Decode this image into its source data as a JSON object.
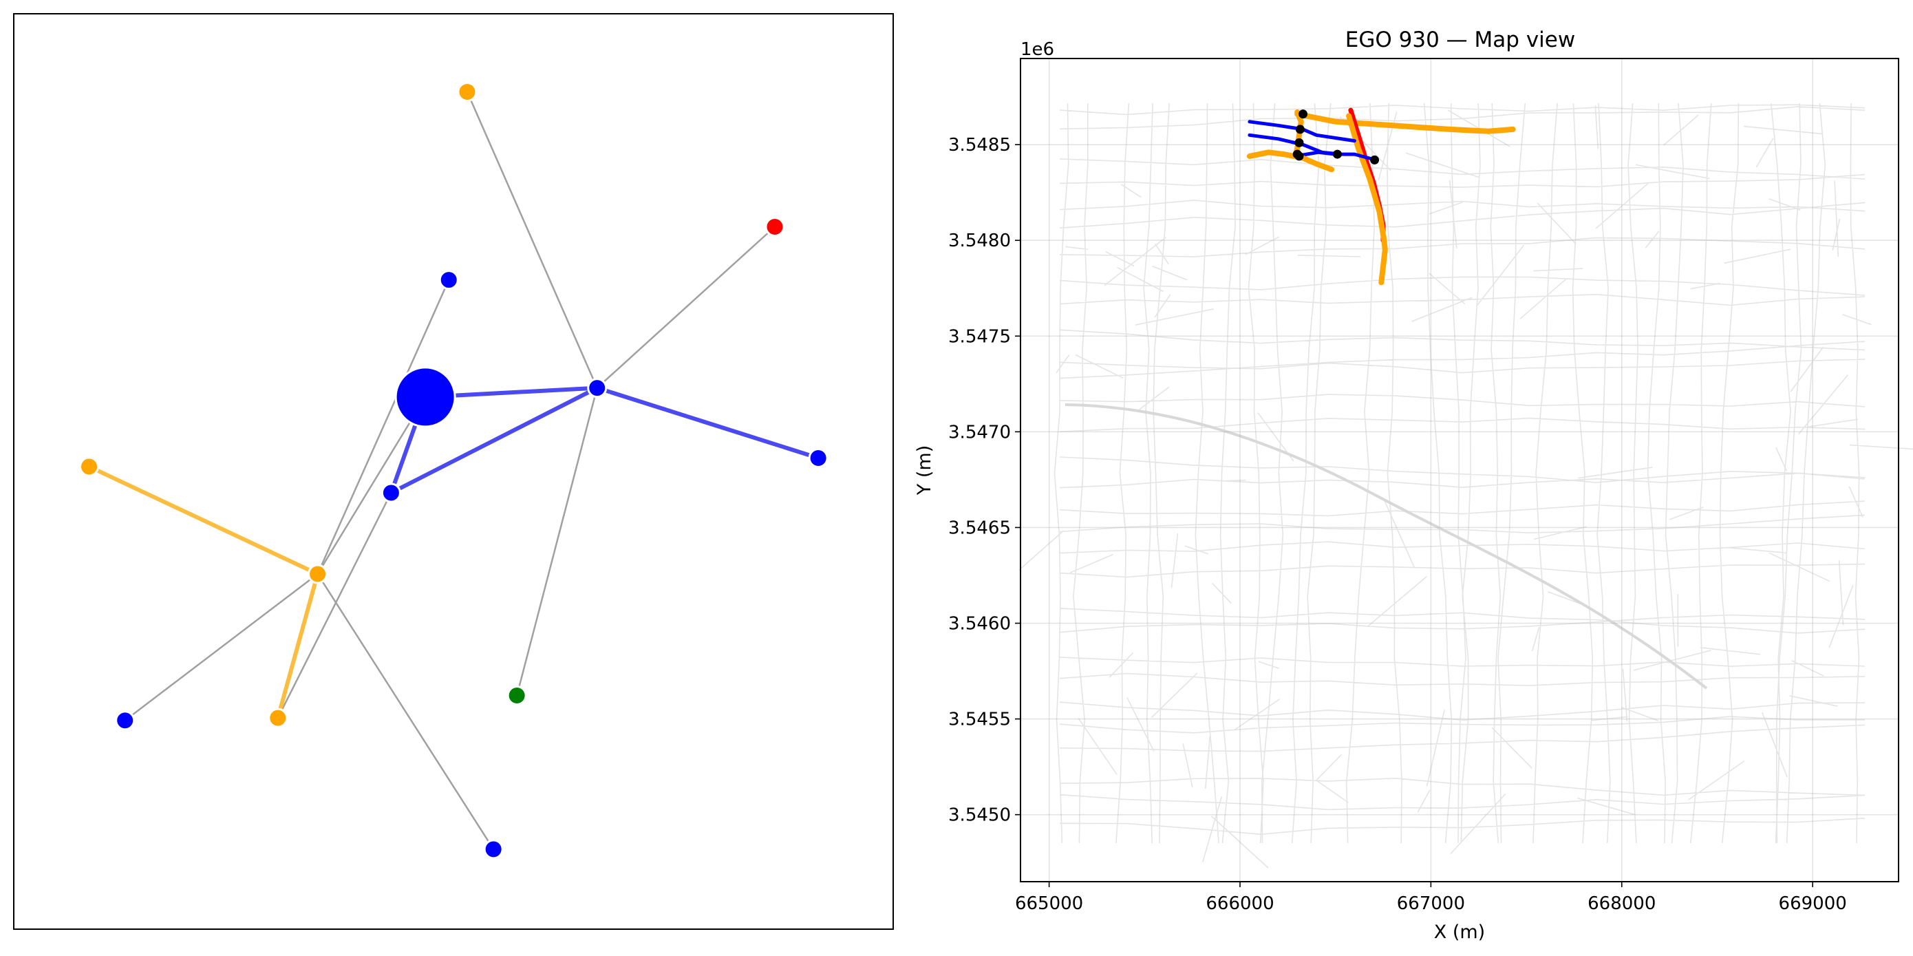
{
  "chart_data": [
    {
      "type": "network",
      "nodes": [
        {
          "id": "ego",
          "x": 0.468,
          "y": 0.5813,
          "color": "#0000ff",
          "big": true
        },
        {
          "id": "n1",
          "x": 0.5156,
          "y": 0.9147,
          "color": "#ffa500"
        },
        {
          "id": "n2",
          "x": 0.8654,
          "y": 0.7673,
          "color": "#ff0000"
        },
        {
          "id": "n3",
          "x": 0.4947,
          "y": 0.7093,
          "color": "#0000ff"
        },
        {
          "id": "n4",
          "x": 0.6633,
          "y": 0.5913,
          "color": "#0000ff"
        },
        {
          "id": "n5",
          "x": 0.9148,
          "y": 0.5147,
          "color": "#0000ff"
        },
        {
          "id": "n6",
          "x": 0.0857,
          "y": 0.5053,
          "color": "#ffa500"
        },
        {
          "id": "n7",
          "x": 0.4291,
          "y": 0.4767,
          "color": "#0000ff"
        },
        {
          "id": "n8",
          "x": 0.3455,
          "y": 0.388,
          "color": "#ffa500"
        },
        {
          "id": "n9",
          "x": 0.1265,
          "y": 0.228,
          "color": "#0000ff"
        },
        {
          "id": "n10",
          "x": 0.3003,
          "y": 0.2307,
          "color": "#ffa500"
        },
        {
          "id": "n11",
          "x": 0.5721,
          "y": 0.2553,
          "color": "#008000"
        },
        {
          "id": "n12",
          "x": 0.5455,
          "y": 0.0873,
          "color": "#0000ff"
        }
      ],
      "edges": [
        {
          "from": "ego",
          "to": "n4",
          "kind": "blue"
        },
        {
          "from": "ego",
          "to": "n7",
          "kind": "blue"
        },
        {
          "from": "n7",
          "to": "n4",
          "kind": "blue"
        },
        {
          "from": "n4",
          "to": "n5",
          "kind": "blue"
        },
        {
          "from": "n6",
          "to": "n8",
          "kind": "orange"
        },
        {
          "from": "n8",
          "to": "n10",
          "kind": "orange"
        },
        {
          "from": "n1",
          "to": "n4",
          "kind": "gray"
        },
        {
          "from": "n2",
          "to": "n4",
          "kind": "gray"
        },
        {
          "from": "n11",
          "to": "n4",
          "kind": "gray"
        },
        {
          "from": "n3",
          "to": "n8",
          "kind": "gray"
        },
        {
          "from": "ego",
          "to": "n8",
          "kind": "gray"
        },
        {
          "from": "n9",
          "to": "n8",
          "kind": "gray"
        },
        {
          "from": "n12",
          "to": "n8",
          "kind": "gray"
        },
        {
          "from": "n10",
          "to": "n7",
          "kind": "gray"
        }
      ],
      "colors": {
        "blue": "#4a4af0",
        "orange": "#fbbd3f",
        "gray": "#a0a0a0"
      }
    },
    {
      "type": "line",
      "title": "EGO 930 — Map view",
      "xlabel": "X (m)",
      "ylabel": "Y (m)",
      "y_offset_label": "1e6",
      "xlim": [
        664850,
        669450
      ],
      "ylim": [
        3.54465,
        3.54895
      ],
      "xticks": [
        665000,
        666000,
        667000,
        668000,
        669000
      ],
      "xtick_labels": [
        "665000",
        "666000",
        "667000",
        "668000",
        "669000"
      ],
      "yticks": [
        3.545,
        3.5455,
        3.546,
        3.5465,
        3.547,
        3.5475,
        3.548,
        3.5485
      ],
      "ytick_labels": [
        "3.5450",
        "3.5455",
        "3.5460",
        "3.5465",
        "3.5470",
        "3.5475",
        "3.5480",
        "3.5485"
      ],
      "grid": true,
      "series": [
        {
          "color": "#ffa500",
          "width": 4,
          "points": [
            [
              666300,
              3.54866
            ],
            [
              666500,
              3.54862
            ],
            [
              666800,
              3.5486
            ],
            [
              667100,
              3.54858
            ],
            [
              667300,
              3.54857
            ],
            [
              667430,
              3.54858
            ]
          ]
        },
        {
          "color": "#ff0000",
          "width": 3.5,
          "points": [
            [
              666580,
              3.54868
            ],
            [
              666620,
              3.54855
            ],
            [
              666660,
              3.54842
            ],
            [
              666700,
              3.5483
            ],
            [
              666730,
              3.54818
            ],
            [
              666750,
              3.54808
            ],
            [
              666750,
              3.548
            ]
          ]
        },
        {
          "color": "#ffa500",
          "width": 4,
          "points": [
            [
              666570,
              3.54865
            ],
            [
              666620,
              3.54848
            ],
            [
              666680,
              3.54832
            ],
            [
              666730,
              3.54815
            ],
            [
              666755,
              3.548
            ],
            [
              666760,
              3.54795
            ],
            [
              666740,
              3.54778
            ]
          ]
        },
        {
          "color": "#0000ff",
          "width": 2.5,
          "points": [
            [
              666050,
              3.54862
            ],
            [
              666200,
              3.5486
            ],
            [
              666330,
              3.54858
            ],
            [
              666400,
              3.54855
            ],
            [
              666600,
              3.54852
            ]
          ]
        },
        {
          "color": "#0000ff",
          "width": 2.5,
          "points": [
            [
              666050,
              3.54855
            ],
            [
              666200,
              3.54853
            ],
            [
              666330,
              3.5485
            ],
            [
              666430,
              3.54846
            ],
            [
              666530,
              3.54845
            ],
            [
              666600,
              3.54845
            ],
            [
              666710,
              3.54842
            ]
          ]
        },
        {
          "color": "#0000ff",
          "width": 2.5,
          "points": [
            [
              666290,
              3.54844
            ],
            [
              666350,
              3.54845
            ],
            [
              666410,
              3.54846
            ],
            [
              666500,
              3.54845
            ]
          ]
        },
        {
          "color": "#ffa500",
          "width": 4,
          "points": [
            [
              666050,
              3.54844
            ],
            [
              666150,
              3.54846
            ],
            [
              666230,
              3.54845
            ],
            [
              666330,
              3.54843
            ],
            [
              666400,
              3.5484
            ],
            [
              666480,
              3.54837
            ]
          ]
        },
        {
          "color": "#ffa500",
          "width": 4,
          "points": [
            [
              666300,
              3.54867
            ],
            [
              666320,
              3.54862
            ],
            [
              666310,
              3.54855
            ],
            [
              666300,
              3.54848
            ],
            [
              666290,
              3.54844
            ]
          ]
        }
      ],
      "points": [
        [
          666330,
          3.54866
        ],
        [
          666315,
          3.54858
        ],
        [
          666310,
          3.54851
        ],
        [
          666300,
          3.54845
        ],
        [
          666310,
          3.54844
        ],
        [
          666510,
          3.54845
        ],
        [
          666705,
          3.54842
        ]
      ],
      "point_color": "#000000"
    }
  ]
}
